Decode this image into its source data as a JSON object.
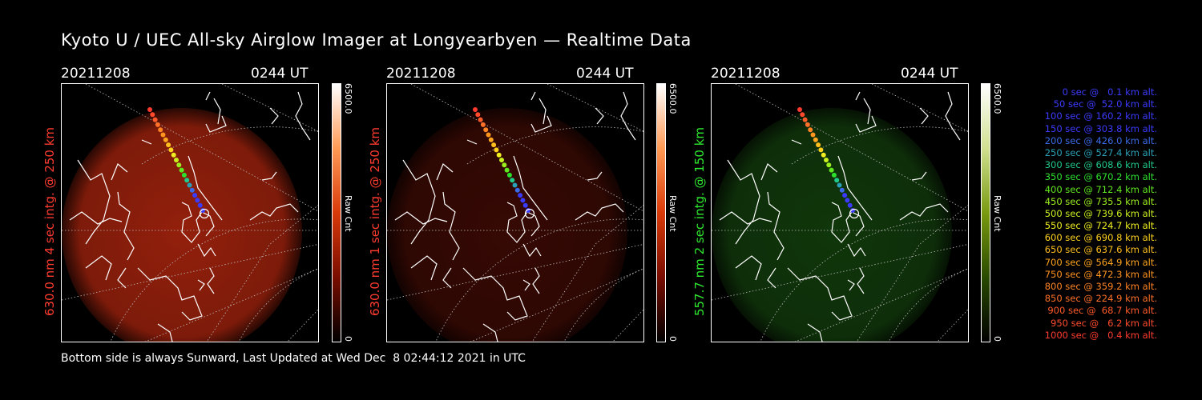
{
  "title": "Kyoto U / UEC All-sky Airglow Imager at Longyearbyen — Realtime Data",
  "footer": "Bottom side is always Sunward, Last Updated at Wed Dec  8 02:44:12 2021 in UTC",
  "panels": [
    {
      "date": "20211208",
      "time": "0244 UT",
      "side_label": "630.0 nm 4 sec intg. @ 250 km",
      "side_color": "#ff3b2f",
      "cbar_max": "6500.0",
      "cbar_min": "0",
      "cbar_unit": "Raw Cnt",
      "glow": "#c42a10",
      "glow_opacity": 0.75
    },
    {
      "date": "20211208",
      "time": "0244 UT",
      "side_label": "630.0 nm 1 sec intg. @ 250 km",
      "side_color": "#ff3b2f",
      "cbar_max": "6500.0",
      "cbar_min": "0",
      "cbar_unit": "Raw Cnt",
      "glow": "#5a0f06",
      "glow_opacity": 0.6
    },
    {
      "date": "20211208",
      "time": "0244 UT",
      "side_label": "557.7 nm 2 sec intg. @ 150 km",
      "side_color": "#2eea2e",
      "cbar_max": "6500.0",
      "cbar_min": "0",
      "cbar_unit": "Raw Cnt",
      "glow": "#1b5a12",
      "glow_opacity": 0.6
    }
  ],
  "legend": [
    {
      "text": "0 sec @   0.1 km alt.",
      "color": "#3b3bff"
    },
    {
      "text": "50 sec @  52.0 km alt.",
      "color": "#3b3bff"
    },
    {
      "text": "100 sec @ 160.2 km alt.",
      "color": "#3b3bff"
    },
    {
      "text": "150 sec @ 303.8 km alt.",
      "color": "#3b3bff"
    },
    {
      "text": "200 sec @ 426.0 km alt.",
      "color": "#3a6be8"
    },
    {
      "text": "250 sec @ 527.4 km alt.",
      "color": "#2aa0b8"
    },
    {
      "text": "300 sec @ 608.6 km alt.",
      "color": "#21c98a"
    },
    {
      "text": "350 sec @ 670.2 km alt.",
      "color": "#2ee02e"
    },
    {
      "text": "400 sec @ 712.4 km alt.",
      "color": "#5fe81f"
    },
    {
      "text": "450 sec @ 735.5 km alt.",
      "color": "#9cee1e"
    },
    {
      "text": "500 sec @ 739.6 km alt.",
      "color": "#c9f01e"
    },
    {
      "text": "550 sec @ 724.7 km alt.",
      "color": "#f0f020"
    },
    {
      "text": "600 sec @ 690.8 km alt.",
      "color": "#ffd21e"
    },
    {
      "text": "650 sec @ 637.6 km alt.",
      "color": "#ffbf1e"
    },
    {
      "text": "700 sec @ 564.9 km alt.",
      "color": "#ffa51e"
    },
    {
      "text": "750 sec @ 472.3 km alt.",
      "color": "#ff9420"
    },
    {
      "text": "800 sec @ 359.2 km alt.",
      "color": "#ff8424"
    },
    {
      "text": "850 sec @ 224.9 km alt.",
      "color": "#ff7028"
    },
    {
      "text": "900 sec @  68.7 km alt.",
      "color": "#ff5a2a"
    },
    {
      "text": "950 sec @   6.2 km alt.",
      "color": "#ff4a2c"
    },
    {
      "text": "1000 sec @   0.4 km alt.",
      "color": "#ff3b2f"
    }
  ]
}
